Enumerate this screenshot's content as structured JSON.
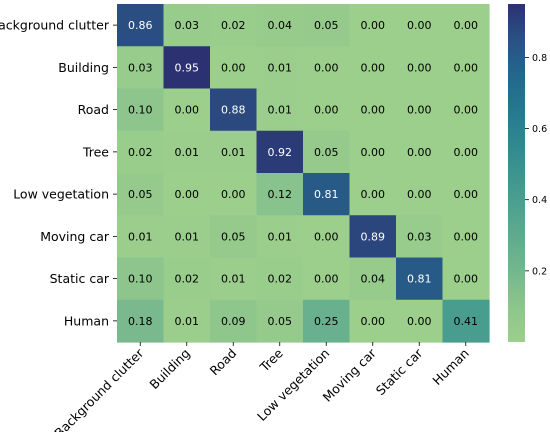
{
  "chart_data": {
    "type": "heatmap",
    "title": "",
    "xlabel": "",
    "ylabel": "",
    "row_labels": [
      "Background clutter",
      "Building",
      "Road",
      "Tree",
      "Low vegetation",
      "Moving car",
      "Static car",
      "Human"
    ],
    "col_labels": [
      "Background clutter",
      "Building",
      "Road",
      "Tree",
      "Low vegetation",
      "Moving car",
      "Static car",
      "Human"
    ],
    "values": [
      [
        0.86,
        0.03,
        0.02,
        0.04,
        0.05,
        0.0,
        0.0,
        0.0
      ],
      [
        0.03,
        0.95,
        0.0,
        0.01,
        0.0,
        0.0,
        0.0,
        0.0
      ],
      [
        0.1,
        0.0,
        0.88,
        0.01,
        0.0,
        0.0,
        0.0,
        0.0
      ],
      [
        0.02,
        0.01,
        0.01,
        0.92,
        0.05,
        0.0,
        0.0,
        0.0
      ],
      [
        0.05,
        0.0,
        0.0,
        0.12,
        0.81,
        0.0,
        0.0,
        0.0
      ],
      [
        0.01,
        0.01,
        0.05,
        0.01,
        0.0,
        0.89,
        0.03,
        0.0
      ],
      [
        0.1,
        0.02,
        0.01,
        0.02,
        0.0,
        0.04,
        0.81,
        0.0
      ],
      [
        0.18,
        0.01,
        0.09,
        0.05,
        0.25,
        0.0,
        0.0,
        0.41
      ]
    ],
    "value_format": "0.00",
    "colormap": "crest",
    "colorbar": {
      "range": [
        0.0,
        0.95
      ],
      "ticks": [
        0.2,
        0.4,
        0.6,
        0.8
      ],
      "tick_labels": [
        "0.2",
        "0.4",
        "0.6",
        "0.8"
      ]
    },
    "colors": {
      "low": "#9ccf8c",
      "high": "#2c3172",
      "text_dark": "#000000",
      "text_light": "#ffffff"
    },
    "grid": false,
    "legend": "colorbar-right"
  }
}
